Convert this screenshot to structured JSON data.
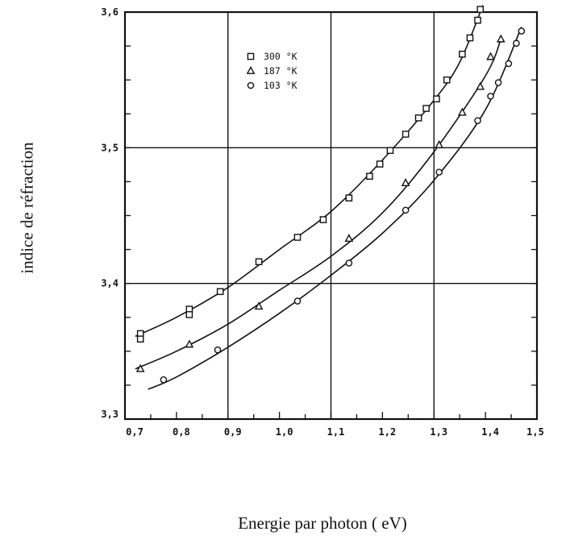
{
  "chart_data": {
    "type": "line",
    "xlabel": "Energie par photon ( eV)",
    "ylabel": "indice de réfraction",
    "xlim": [
      0.7,
      1.5
    ],
    "ylim": [
      3.3,
      3.6
    ],
    "x_ticks": [
      "0,7",
      "0,8",
      "0,9",
      "1,0",
      "1,1",
      "1,2",
      "1,3",
      "1,4",
      "1,5"
    ],
    "y_ticks": [
      "3,3",
      "3,4",
      "3,5",
      "3,6"
    ],
    "grid": "major lines at x = 0.9, 1.1, 1.3 and y = 3.4, 3.5",
    "legend_position": "top-left inside plot",
    "series": [
      {
        "name": "300 °K",
        "marker": "square",
        "x": [
          0.73,
          0.73,
          0.825,
          0.825,
          0.885,
          0.96,
          1.035,
          1.085,
          1.135,
          1.175,
          1.195,
          1.215,
          1.245,
          1.27,
          1.285,
          1.305,
          1.325,
          1.355,
          1.37,
          1.385,
          1.39
        ],
        "y": [
          3.363,
          3.359,
          3.381,
          3.377,
          3.394,
          3.416,
          3.434,
          3.447,
          3.463,
          3.479,
          3.488,
          3.498,
          3.51,
          3.522,
          3.529,
          3.536,
          3.55,
          3.569,
          3.581,
          3.594,
          3.602
        ]
      },
      {
        "name": "187 °K",
        "marker": "triangle",
        "x": [
          0.73,
          0.825,
          0.96,
          1.135,
          1.245,
          1.31,
          1.355,
          1.39,
          1.41,
          1.43
        ],
        "y": [
          3.337,
          3.355,
          3.383,
          3.433,
          3.474,
          3.502,
          3.526,
          3.545,
          3.567,
          3.58
        ]
      },
      {
        "name": "103 °K",
        "marker": "circle",
        "x": [
          0.775,
          0.88,
          1.035,
          1.135,
          1.245,
          1.31,
          1.385,
          1.41,
          1.425,
          1.445,
          1.46,
          1.47
        ],
        "y": [
          3.329,
          3.351,
          3.387,
          3.415,
          3.454,
          3.482,
          3.52,
          3.538,
          3.548,
          3.562,
          3.577,
          3.586
        ]
      }
    ],
    "curves": [
      {
        "series": "300 °K",
        "x": [
          0.72,
          0.8,
          0.9,
          1.0,
          1.1,
          1.2,
          1.3,
          1.35,
          1.395
        ],
        "y": [
          3.361,
          3.375,
          3.397,
          3.425,
          3.453,
          3.491,
          3.535,
          3.563,
          3.605
        ]
      },
      {
        "series": "187 °K",
        "x": [
          0.72,
          0.8,
          0.9,
          1.0,
          1.1,
          1.2,
          1.3,
          1.4,
          1.43
        ],
        "y": [
          3.337,
          3.35,
          3.37,
          3.395,
          3.42,
          3.452,
          3.497,
          3.553,
          3.58
        ]
      },
      {
        "series": "103 °K",
        "x": [
          0.745,
          0.8,
          0.9,
          1.0,
          1.1,
          1.2,
          1.3,
          1.4,
          1.47
        ],
        "y": [
          3.322,
          3.331,
          3.353,
          3.378,
          3.406,
          3.437,
          3.476,
          3.528,
          3.589
        ]
      }
    ]
  }
}
